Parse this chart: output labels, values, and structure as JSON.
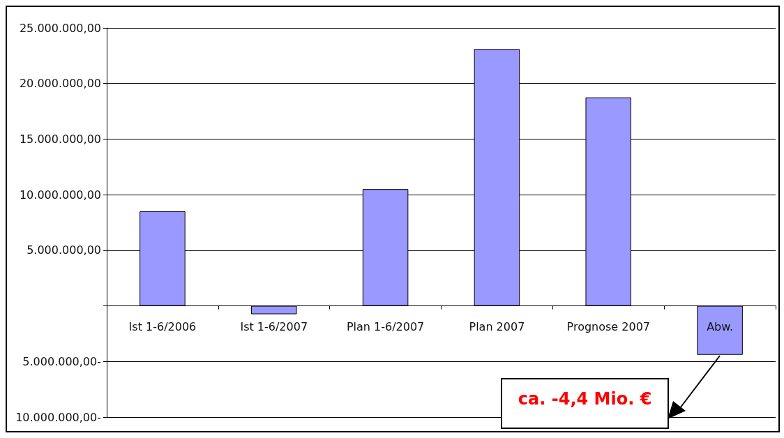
{
  "chart_data": {
    "type": "bar",
    "categories": [
      "Ist 1-6/2006",
      "Ist 1-6/2007",
      "Plan 1-6/2007",
      "Plan 2007",
      "Prognose 2007",
      "Abw."
    ],
    "values": [
      8500000,
      -750000,
      10500000,
      23100000,
      18750000,
      -4400000
    ],
    "color": "#9999ff",
    "ylim": [
      -10000000,
      25000000
    ],
    "yticks": [
      {
        "value": -10000000,
        "label": "10.000.000,00-"
      },
      {
        "value": -5000000,
        "label": "5.000.000,00-"
      },
      {
        "value": 0,
        "label": null
      },
      {
        "value": 5000000,
        "label": "5.000.000,00"
      },
      {
        "value": 10000000,
        "label": "10.000.000,00"
      },
      {
        "value": 15000000,
        "label": "15.000.000,00"
      },
      {
        "value": 20000000,
        "label": "20.000.000,00"
      },
      {
        "value": 25000000,
        "label": "25.000.000,00"
      }
    ],
    "grid": "y",
    "annotations": [
      "ca. -4,4 Mio. €"
    ]
  }
}
